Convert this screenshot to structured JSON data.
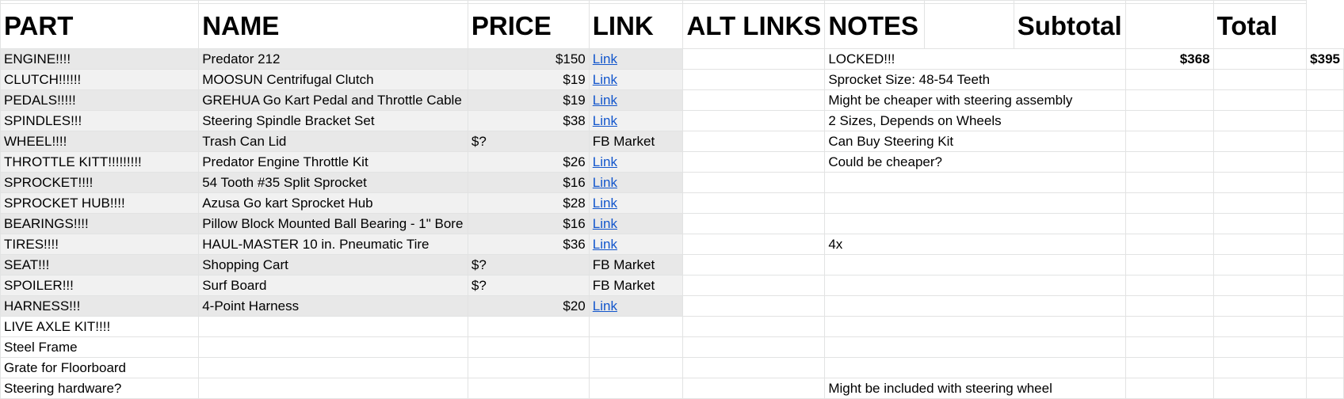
{
  "headers": {
    "part": "PART",
    "name": "NAME",
    "price": "PRICE",
    "link": "LINK",
    "alt_links": "ALT LINKS",
    "notes": "NOTES",
    "subtotal": "Subtotal",
    "total": "Total"
  },
  "summary": {
    "subtotal": "$368",
    "total": "$395"
  },
  "rows": [
    {
      "part": "ENGINE!!!!",
      "name": "Predator 212",
      "price": "$150",
      "link": "Link",
      "notes": "LOCKED!!!"
    },
    {
      "part": "CLUTCH!!!!!!",
      "name": "MOOSUN Centrifugal Clutch",
      "price": "$19",
      "link": "Link",
      "notes": "Sprocket Size: 48-54 Teeth"
    },
    {
      "part": "PEDALS!!!!!",
      "name": "GREHUA Go Kart Pedal and Throttle Cable",
      "price": "$19",
      "link": "Link",
      "notes": "Might be cheaper with steering assembly"
    },
    {
      "part": "SPINDLES!!!",
      "name": "Steering Spindle Bracket Set",
      "price": "$38",
      "link": "Link",
      "notes": "2 Sizes, Depends on Wheels"
    },
    {
      "part": "WHEEL!!!!",
      "name": "Trash Can Lid",
      "price": "$?",
      "link": "FB Market",
      "notes": "Can Buy Steering Kit"
    },
    {
      "part": "THROTTLE KITT!!!!!!!!!",
      "name": "Predator Engine Throttle Kit",
      "price": "$26",
      "link": "Link",
      "notes": "Could be cheaper?"
    },
    {
      "part": "SPROCKET!!!!",
      "name": "54 Tooth #35 Split Sprocket",
      "price": "$16",
      "link": "Link",
      "notes": ""
    },
    {
      "part": "SPROCKET HUB!!!!",
      "name": "Azusa Go kart Sprocket Hub",
      "price": "$28",
      "link": "Link",
      "notes": ""
    },
    {
      "part": "BEARINGS!!!!",
      "name": "Pillow Block Mounted Ball Bearing - 1\" Bore",
      "price": "$16",
      "link": "Link",
      "notes": ""
    },
    {
      "part": "TIRES!!!!",
      "name": "HAUL-MASTER 10 in. Pneumatic Tire",
      "price": "$36",
      "link": "Link",
      "notes": "4x"
    },
    {
      "part": "SEAT!!!",
      "name": "Shopping Cart",
      "price": "$?",
      "link": "FB Market",
      "notes": ""
    },
    {
      "part": "SPOILER!!!",
      "name": "Surf Board",
      "price": "$?",
      "link": "FB Market",
      "notes": ""
    },
    {
      "part": "HARNESS!!!",
      "name": "4-Point Harness",
      "price": "$20",
      "link": "Link",
      "notes": ""
    },
    {
      "part": "LIVE AXLE KIT!!!!",
      "name": "",
      "price": "",
      "link": "",
      "notes": ""
    },
    {
      "part": "Steel Frame",
      "name": "",
      "price": "",
      "link": "",
      "notes": ""
    },
    {
      "part": "Grate for Floorboard",
      "name": "",
      "price": "",
      "link": "",
      "notes": ""
    },
    {
      "part": "Steering hardware?",
      "name": "",
      "price": "",
      "link": "",
      "notes": "Might be included with steering wheel"
    }
  ]
}
